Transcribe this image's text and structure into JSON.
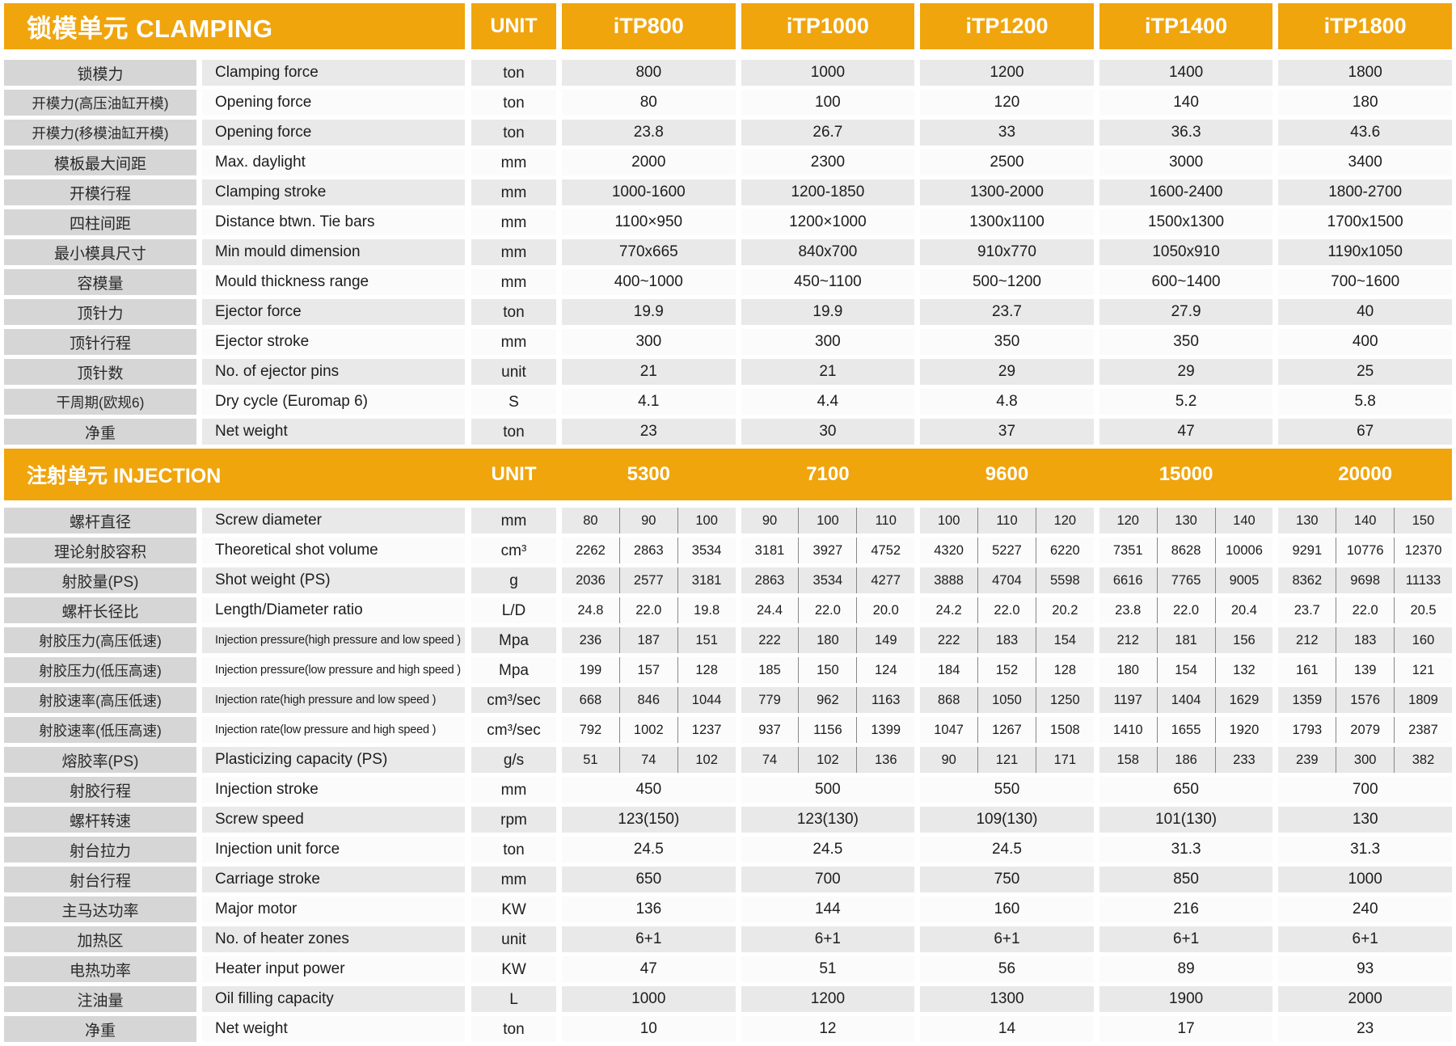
{
  "colors": {
    "accent_orange": "#F0A50D",
    "label_gray": "#D6D6D6",
    "row_gray": "#E9E9E9",
    "row_white": "#FBFBFB"
  },
  "clamping": {
    "title": "锁模单元 CLAMPING",
    "unit_label": "UNIT",
    "models": [
      "iTP800",
      "iTP1000",
      "iTP1200",
      "iTP1400",
      "iTP1800"
    ],
    "rows": [
      {
        "cn": "锁模力",
        "en": "Clamping force",
        "unit": "ton",
        "values": [
          "800",
          "1000",
          "1200",
          "1400",
          "1800"
        ]
      },
      {
        "cn": "开模力(高压油缸开模)",
        "en": "Opening force",
        "unit": "ton",
        "values": [
          "80",
          "100",
          "120",
          "140",
          "180"
        ]
      },
      {
        "cn": "开模力(移模油缸开模)",
        "en": "Opening force",
        "unit": "ton",
        "values": [
          "23.8",
          "26.7",
          "33",
          "36.3",
          "43.6"
        ]
      },
      {
        "cn": "模板最大间距",
        "en": "Max. daylight",
        "unit": "mm",
        "values": [
          "2000",
          "2300",
          "2500",
          "3000",
          "3400"
        ]
      },
      {
        "cn": "开模行程",
        "en": "Clamping stroke",
        "unit": "mm",
        "values": [
          "1000-1600",
          "1200-1850",
          "1300-2000",
          "1600-2400",
          "1800-2700"
        ]
      },
      {
        "cn": "四柱间距",
        "en": "Distance btwn. Tie bars",
        "unit": "mm",
        "values": [
          "1100×950",
          "1200×1000",
          "1300x1100",
          "1500x1300",
          "1700x1500"
        ]
      },
      {
        "cn": "最小模具尺寸",
        "en": "Min mould dimension",
        "unit": "mm",
        "values": [
          "770x665",
          "840x700",
          "910x770",
          "1050x910",
          "1190x1050"
        ]
      },
      {
        "cn": "容模量",
        "en": "Mould thickness range",
        "unit": "mm",
        "values": [
          "400~1000",
          "450~1100",
          "500~1200",
          "600~1400",
          "700~1600"
        ]
      },
      {
        "cn": "顶针力",
        "en": "Ejector force",
        "unit": "ton",
        "values": [
          "19.9",
          "19.9",
          "23.7",
          "27.9",
          "40"
        ]
      },
      {
        "cn": "顶针行程",
        "en": "Ejector stroke",
        "unit": "mm",
        "values": [
          "300",
          "300",
          "350",
          "350",
          "400"
        ]
      },
      {
        "cn": "顶针数",
        "en": "No. of ejector pins",
        "unit": "unit",
        "values": [
          "21",
          "21",
          "29",
          "29",
          "25"
        ]
      },
      {
        "cn": "干周期(欧规6)",
        "en": "Dry cycle (Euromap 6)",
        "unit": "S",
        "values": [
          "4.1",
          "4.4",
          "4.8",
          "5.2",
          "5.8"
        ]
      },
      {
        "cn": "净重",
        "en": "Net weight",
        "unit": "ton",
        "values": [
          "23",
          "30",
          "37",
          "47",
          "67"
        ]
      }
    ]
  },
  "injection": {
    "title": "注射单元 INJECTION",
    "unit_label": "UNIT",
    "models": [
      "5300",
      "7100",
      "9600",
      "15000",
      "20000"
    ],
    "rows": [
      {
        "cn": "螺杆直径",
        "en": "Screw diameter",
        "unit": "mm",
        "span": "sub",
        "values": [
          "80",
          "90",
          "100",
          "90",
          "100",
          "110",
          "100",
          "110",
          "120",
          "120",
          "130",
          "140",
          "130",
          "140",
          "150"
        ]
      },
      {
        "cn": "理论射胶容积",
        "en": "Theoretical shot volume",
        "unit": "cm³",
        "span": "sub",
        "values": [
          "2262",
          "2863",
          "3534",
          "3181",
          "3927",
          "4752",
          "4320",
          "5227",
          "6220",
          "7351",
          "8628",
          "10006",
          "9291",
          "10776",
          "12370"
        ]
      },
      {
        "cn": "射胶量(PS)",
        "en": "Shot weight (PS)",
        "unit": "g",
        "span": "sub",
        "values": [
          "2036",
          "2577",
          "3181",
          "2863",
          "3534",
          "4277",
          "3888",
          "4704",
          "5598",
          "6616",
          "7765",
          "9005",
          "8362",
          "9698",
          "11133"
        ]
      },
      {
        "cn": "螺杆长径比",
        "en": "Length/Diameter ratio",
        "unit": "L/D",
        "span": "sub",
        "values": [
          "24.8",
          "22.0",
          "19.8",
          "24.4",
          "22.0",
          "20.0",
          "24.2",
          "22.0",
          "20.2",
          "23.8",
          "22.0",
          "20.4",
          "23.7",
          "22.0",
          "20.5"
        ]
      },
      {
        "cn": "射胶压力(高压低速)",
        "en": "Injection pressure(high pressure and low speed )",
        "unit": "Mpa",
        "span": "sub",
        "small": true,
        "values": [
          "236",
          "187",
          "151",
          "222",
          "180",
          "149",
          "222",
          "183",
          "154",
          "212",
          "181",
          "156",
          "212",
          "183",
          "160"
        ]
      },
      {
        "cn": "射胶压力(低压高速)",
        "en": "Injection pressure(low pressure and high speed )",
        "unit": "Mpa",
        "span": "sub",
        "small": true,
        "values": [
          "199",
          "157",
          "128",
          "185",
          "150",
          "124",
          "184",
          "152",
          "128",
          "180",
          "154",
          "132",
          "161",
          "139",
          "121"
        ]
      },
      {
        "cn": "射胶速率(高压低速)",
        "en": "Injection rate(high pressure and low speed )",
        "unit": "cm³/sec",
        "span": "sub",
        "small": true,
        "values": [
          "668",
          "846",
          "1044",
          "779",
          "962",
          "1163",
          "868",
          "1050",
          "1250",
          "1197",
          "1404",
          "1629",
          "1359",
          "1576",
          "1809"
        ]
      },
      {
        "cn": "射胶速率(低压高速)",
        "en": "Injection rate(low pressure and high speed )",
        "unit": "cm³/sec",
        "span": "sub",
        "small": true,
        "values": [
          "792",
          "1002",
          "1237",
          "937",
          "1156",
          "1399",
          "1047",
          "1267",
          "1508",
          "1410",
          "1655",
          "1920",
          "1793",
          "2079",
          "2387"
        ]
      },
      {
        "cn": "熔胶率(PS)",
        "en": "Plasticizing capacity (PS)",
        "unit": "g/s",
        "span": "sub",
        "values": [
          "51",
          "74",
          "102",
          "74",
          "102",
          "136",
          "90",
          "121",
          "171",
          "158",
          "186",
          "233",
          "239",
          "300",
          "382"
        ]
      },
      {
        "cn": "射胶行程",
        "en": "Injection stroke",
        "unit": "mm",
        "span": "group",
        "values": [
          "450",
          "500",
          "550",
          "650",
          "700"
        ]
      },
      {
        "cn": "螺杆转速",
        "en": "Screw speed",
        "unit": "rpm",
        "span": "group",
        "values": [
          "123(150)",
          "123(130)",
          "109(130)",
          "101(130)",
          "130"
        ]
      },
      {
        "cn": "射台拉力",
        "en": "Injection unit force",
        "unit": "ton",
        "span": "group",
        "values": [
          "24.5",
          "24.5",
          "24.5",
          "31.3",
          "31.3"
        ]
      },
      {
        "cn": "射台行程",
        "en": "Carriage stroke",
        "unit": "mm",
        "span": "group",
        "values": [
          "650",
          "700",
          "750",
          "850",
          "1000"
        ]
      },
      {
        "cn": "主马达功率",
        "en": "Major motor",
        "unit": "KW",
        "span": "group",
        "values": [
          "136",
          "144",
          "160",
          "216",
          "240"
        ]
      },
      {
        "cn": "加热区",
        "en": "No. of heater zones",
        "unit": "unit",
        "span": "group",
        "values": [
          "6+1",
          "6+1",
          "6+1",
          "6+1",
          "6+1"
        ]
      },
      {
        "cn": "电热功率",
        "en": "Heater input power",
        "unit": "KW",
        "span": "group",
        "values": [
          "47",
          "51",
          "56",
          "89",
          "93"
        ]
      },
      {
        "cn": "注油量",
        "en": "Oil filling capacity",
        "unit": "L",
        "span": "group",
        "values": [
          "1000",
          "1200",
          "1300",
          "1900",
          "2000"
        ]
      },
      {
        "cn": "净重",
        "en": "Net weight",
        "unit": "ton",
        "span": "group",
        "values": [
          "10",
          "12",
          "14",
          "17",
          "23"
        ]
      }
    ]
  }
}
